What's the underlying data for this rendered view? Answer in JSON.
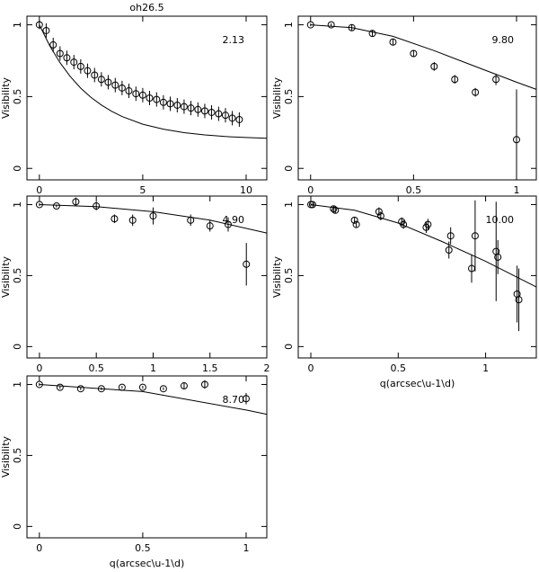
{
  "chart_data": [
    {
      "type": "scatter",
      "title": "oh26.5",
      "ylabel": "Visibility",
      "annotation": "2.13",
      "xlim": [
        -0.6,
        11
      ],
      "ylim": [
        -0.08,
        1.06
      ],
      "xticks": [
        0,
        5,
        10
      ],
      "yticks": [
        0,
        0.5,
        1
      ],
      "x": [
        0,
        0.33,
        0.67,
        1.0,
        1.33,
        1.67,
        2.0,
        2.33,
        2.67,
        3.0,
        3.33,
        3.67,
        4.0,
        4.33,
        4.67,
        5.0,
        5.33,
        5.67,
        6.0,
        6.33,
        6.67,
        7.0,
        7.33,
        7.67,
        8.0,
        8.33,
        8.67,
        9.0,
        9.33,
        9.67
      ],
      "values": [
        1.0,
        0.96,
        0.86,
        0.8,
        0.77,
        0.74,
        0.71,
        0.68,
        0.65,
        0.62,
        0.6,
        0.58,
        0.56,
        0.54,
        0.52,
        0.51,
        0.49,
        0.48,
        0.46,
        0.45,
        0.44,
        0.43,
        0.42,
        0.41,
        0.4,
        0.39,
        0.38,
        0.37,
        0.35,
        0.34
      ],
      "errors": [
        0.03,
        0.05,
        0.05,
        0.05,
        0.05,
        0.05,
        0.05,
        0.05,
        0.05,
        0.05,
        0.05,
        0.05,
        0.05,
        0.05,
        0.05,
        0.05,
        0.05,
        0.05,
        0.05,
        0.05,
        0.05,
        0.05,
        0.05,
        0.05,
        0.05,
        0.05,
        0.05,
        0.05,
        0.05,
        0.05
      ],
      "curve_x": [
        0,
        0.5,
        1,
        1.5,
        2,
        2.5,
        3,
        3.5,
        4,
        5,
        6,
        7,
        8,
        9,
        10,
        11
      ],
      "curve_values": [
        1.0,
        0.855,
        0.736,
        0.639,
        0.559,
        0.494,
        0.441,
        0.397,
        0.361,
        0.308,
        0.273,
        0.249,
        0.233,
        0.222,
        0.215,
        0.21
      ]
    },
    {
      "type": "scatter",
      "ylabel": "Visibility",
      "annotation": "9.80",
      "xlim": [
        -0.06,
        1.096
      ],
      "ylim": [
        -0.08,
        1.06
      ],
      "xticks": [
        0,
        0.5,
        1
      ],
      "yticks": [
        0,
        0.5,
        1
      ],
      "x": [
        0,
        0.1,
        0.2,
        0.3,
        0.4,
        0.5,
        0.6,
        0.7,
        0.8,
        0.9,
        1.0
      ],
      "values": [
        1.0,
        1.0,
        0.98,
        0.94,
        0.88,
        0.8,
        0.71,
        0.62,
        0.53,
        0.62,
        0.2
      ],
      "errors": [
        0.01,
        0.01,
        0.02,
        0.02,
        0.02,
        0.02,
        0.03,
        0.03,
        0.03,
        0.04,
        0.35
      ],
      "curve_x": [
        0,
        0.2,
        0.4,
        0.6,
        0.8,
        1.0,
        1.096
      ],
      "curve_values": [
        1.0,
        0.98,
        0.92,
        0.82,
        0.71,
        0.6,
        0.55
      ]
    },
    {
      "type": "scatter",
      "ylabel": "Visibility",
      "annotation": "4.90",
      "xlim": [
        -0.11,
        2.0
      ],
      "ylim": [
        -0.08,
        1.06
      ],
      "xticks": [
        0,
        0.5,
        1,
        1.5,
        2
      ],
      "yticks": [
        0,
        0.5,
        1
      ],
      "x": [
        0,
        0.15,
        0.32,
        0.5,
        0.66,
        0.82,
        1.0,
        1.33,
        1.5,
        1.66,
        1.82
      ],
      "values": [
        1.0,
        0.99,
        1.02,
        0.99,
        0.9,
        0.89,
        0.92,
        0.89,
        0.85,
        0.86,
        0.58
      ],
      "errors": [
        0.01,
        0.01,
        0.03,
        0.03,
        0.03,
        0.04,
        0.06,
        0.04,
        0.04,
        0.05,
        0.15
      ],
      "curve_x": [
        0,
        0.5,
        1,
        1.5,
        2
      ],
      "curve_values": [
        1.0,
        0.985,
        0.95,
        0.89,
        0.8
      ]
    },
    {
      "type": "scatter",
      "ylabel": "Visibility",
      "xlabel": "q(arcsec\\u-1\\d)",
      "annotation": "10.00",
      "xlim": [
        -0.072,
        1.29
      ],
      "ylim": [
        -0.08,
        1.06
      ],
      "xticks": [
        0,
        0.5,
        1
      ],
      "yticks": [
        0,
        0.5,
        1
      ],
      "x": [
        0,
        0.01,
        0.13,
        0.14,
        0.25,
        0.26,
        0.39,
        0.4,
        0.52,
        0.53,
        0.66,
        0.67,
        0.79,
        0.8,
        0.92,
        0.94,
        1.06,
        1.07,
        1.18,
        1.19
      ],
      "values": [
        1.0,
        1.0,
        0.97,
        0.96,
        0.89,
        0.86,
        0.95,
        0.92,
        0.88,
        0.86,
        0.84,
        0.86,
        0.68,
        0.78,
        0.55,
        0.78,
        0.67,
        0.63,
        0.37,
        0.33
      ],
      "errors": [
        0.01,
        0.01,
        0.02,
        0.02,
        0.02,
        0.02,
        0.03,
        0.03,
        0.03,
        0.03,
        0.04,
        0.04,
        0.06,
        0.06,
        0.1,
        0.25,
        0.35,
        0.12,
        0.2,
        0.22
      ],
      "curve_x": [
        0,
        0.25,
        0.5,
        0.75,
        1,
        1.29
      ],
      "curve_values": [
        1.0,
        0.96,
        0.87,
        0.74,
        0.6,
        0.42
      ]
    },
    {
      "type": "scatter",
      "ylabel": "Visibility",
      "xlabel": "q(arcsec\\u-1\\d)",
      "annotation": "8.70",
      "xlim": [
        -0.06,
        1.1
      ],
      "ylim": [
        -0.08,
        1.06
      ],
      "xticks": [
        0,
        0.5,
        1
      ],
      "yticks": [
        0,
        0.5,
        1
      ],
      "x": [
        0,
        0.1,
        0.2,
        0.3,
        0.4,
        0.5,
        0.6,
        0.7,
        0.8,
        1.0
      ],
      "values": [
        1.0,
        0.98,
        0.97,
        0.97,
        0.98,
        0.98,
        0.97,
        0.99,
        1.0,
        0.9
      ],
      "errors": [
        0.01,
        0.01,
        0.01,
        0.01,
        0.01,
        0.01,
        0.01,
        0.02,
        0.03,
        0.04
      ],
      "curve_x": [
        0,
        0.5,
        1,
        1.1
      ],
      "curve_values": [
        1.0,
        0.95,
        0.82,
        0.79
      ]
    }
  ]
}
